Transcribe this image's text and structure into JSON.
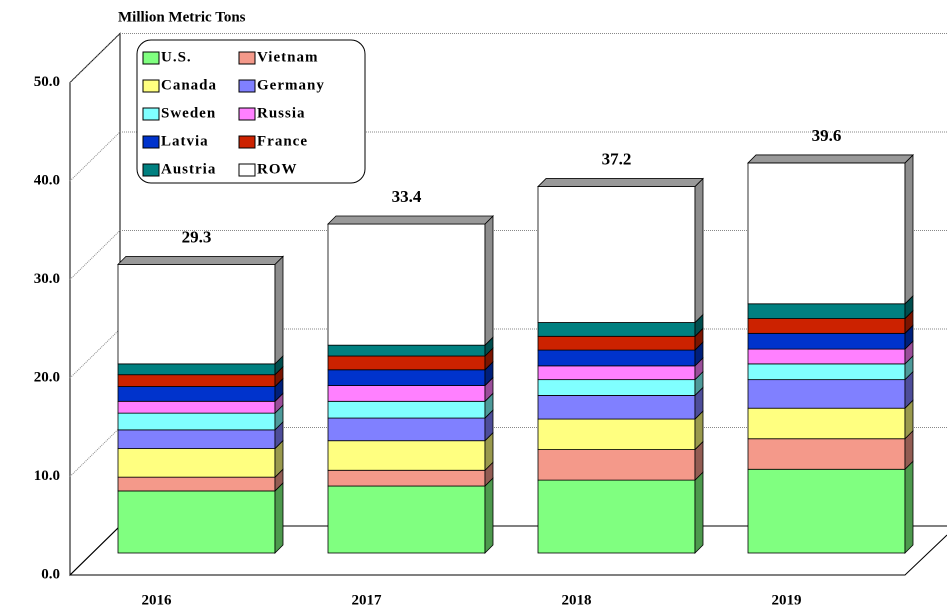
{
  "chart_data": {
    "type": "bar3d-stacked",
    "title": "Million Metric Tons",
    "categories": [
      "2016",
      "2017",
      "2018",
      "2019"
    ],
    "series": [
      {
        "name": "U.S.",
        "color": "#80ff80",
        "values": [
          6.3,
          6.8,
          7.4,
          8.5
        ]
      },
      {
        "name": "Vietnam",
        "color": "#f4998a",
        "values": [
          1.4,
          1.6,
          3.1,
          3.1
        ]
      },
      {
        "name": "Canada",
        "color": "#ffff80",
        "values": [
          2.9,
          3.0,
          3.1,
          3.1
        ]
      },
      {
        "name": "Germany",
        "color": "#8080ff",
        "values": [
          1.9,
          2.3,
          2.4,
          2.9
        ]
      },
      {
        "name": "Sweden",
        "color": "#80ffff",
        "values": [
          1.7,
          1.7,
          1.6,
          1.6
        ]
      },
      {
        "name": "Russia",
        "color": "#ff80ff",
        "values": [
          1.2,
          1.6,
          1.4,
          1.5
        ]
      },
      {
        "name": "Latvia",
        "color": "#0033cc",
        "values": [
          1.5,
          1.6,
          1.6,
          1.6
        ]
      },
      {
        "name": "France",
        "color": "#cc2200",
        "values": [
          1.2,
          1.4,
          1.4,
          1.5
        ]
      },
      {
        "name": "Austria",
        "color": "#008080",
        "values": [
          1.1,
          1.1,
          1.4,
          1.5
        ]
      },
      {
        "name": "ROW",
        "color": "#ffffff",
        "values": [
          10.1,
          12.3,
          13.8,
          14.3
        ]
      }
    ],
    "totals": [
      29.3,
      33.4,
      37.2,
      39.6
    ],
    "ylim": [
      0,
      50
    ],
    "yticks": [
      {
        "value": 0,
        "label": "0.0"
      },
      {
        "value": 10,
        "label": "10.0"
      },
      {
        "value": 20,
        "label": "20.0"
      },
      {
        "value": 30,
        "label": "30.0"
      },
      {
        "value": 40,
        "label": "40.0"
      },
      {
        "value": 50,
        "label": "50.0"
      }
    ],
    "grid": true
  }
}
